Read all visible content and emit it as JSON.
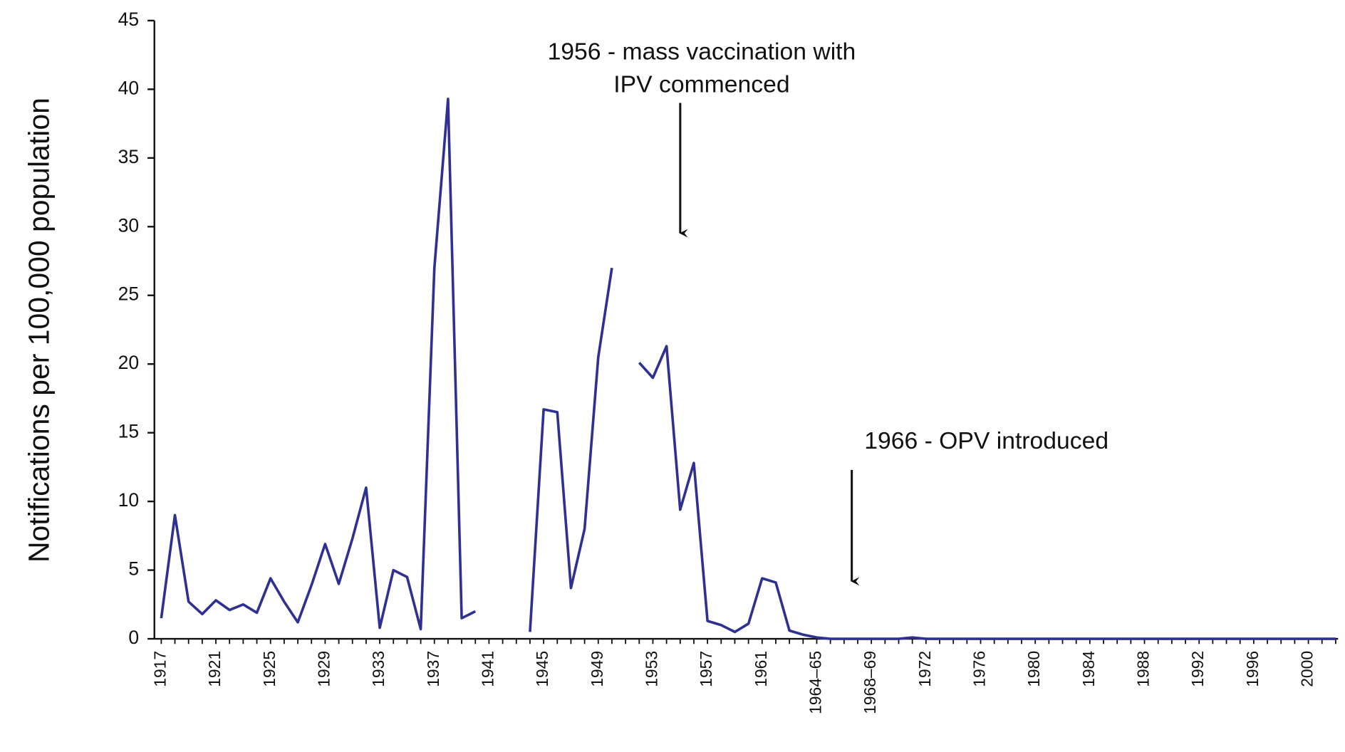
{
  "chart_data": {
    "type": "line",
    "y_label": "Notifications per 100,000 population",
    "categories": [
      "1917",
      null,
      null,
      null,
      "1921",
      null,
      null,
      null,
      "1925",
      null,
      null,
      null,
      "1929",
      null,
      null,
      null,
      "1933",
      null,
      null,
      null,
      "1937",
      null,
      null,
      null,
      "1941",
      null,
      null,
      null,
      "1945",
      null,
      null,
      null,
      "1949",
      null,
      null,
      null,
      "1953",
      null,
      null,
      null,
      "1957",
      null,
      null,
      null,
      "1961",
      null,
      null,
      null,
      "1964–65",
      null,
      null,
      null,
      "1968–69",
      null,
      null,
      null,
      "1972",
      null,
      null,
      null,
      "1976",
      null,
      null,
      null,
      "1980",
      null,
      null,
      null,
      "1984",
      null,
      null,
      null,
      "1988",
      null,
      null,
      null,
      "1992",
      null,
      null,
      null,
      "1996",
      null,
      null,
      null,
      "2000",
      null,
      null
    ],
    "series": [
      {
        "color": "#2e3192",
        "values": [
          1.5,
          9,
          2.7,
          1.8,
          2.8,
          2.1,
          2.5,
          1.9,
          4.4,
          2.7,
          1.2,
          3.9,
          6.9,
          4,
          7.3,
          11,
          0.8,
          5,
          4.5,
          0.7,
          27,
          39.3,
          1.5,
          2,
          null,
          null,
          null,
          0.5,
          16.7,
          16.5,
          3.7,
          8,
          20.5,
          27,
          null,
          20.1,
          19,
          21.3,
          9.4,
          12.8,
          1.3,
          1,
          0.5,
          1.1,
          4.4,
          4.1,
          0.6,
          0.3,
          0.1,
          0,
          0,
          0,
          0,
          0,
          0,
          0.1,
          0,
          0,
          0,
          0,
          0,
          0,
          0,
          0,
          0,
          0,
          0,
          0,
          0,
          0,
          0,
          0,
          0,
          0,
          0,
          0,
          0,
          0,
          0,
          0,
          0,
          0,
          0,
          0,
          0,
          0,
          0
        ]
      }
    ],
    "ylim": [
      0,
      45
    ],
    "yticks": [
      0,
      5,
      10,
      15,
      20,
      25,
      30,
      35,
      40,
      45
    ],
    "grid": false,
    "annotations": [
      {
        "lines": [
          "1956 - mass vaccination with",
          "IPV commenced"
        ]
      },
      {
        "lines": [
          "1966 - OPV introduced"
        ]
      }
    ]
  }
}
